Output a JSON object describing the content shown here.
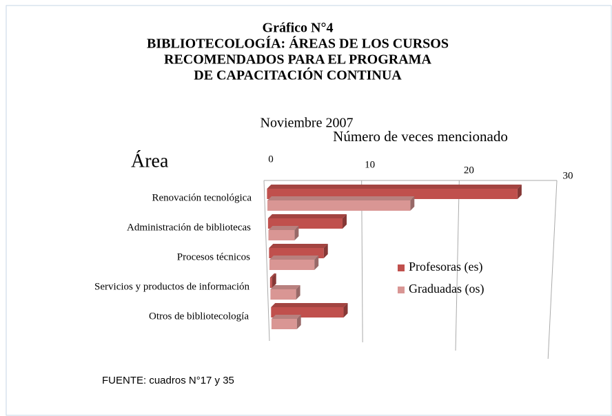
{
  "chart_data": {
    "type": "bar3d",
    "title": [
      "Gráfico N°4",
      "BIBLIOTECOLOGÍA: ÁREAS DE LOS CURSOS",
      "RECOMENDADOS PARA EL PROGRAMA",
      "DE CAPACITACIÓN CONTINUA"
    ],
    "subtitle": "Noviembre 2007",
    "xlabel": "Número de veces mencionado",
    "ylabel": "Área",
    "source": "FUENTE: cuadros N°17 y 35",
    "categories": [
      "Renovación tecnológica",
      "Administración de bibliotecas",
      "Procesos técnicos",
      "Servicios y productos de información",
      "Otros de bibliotecología"
    ],
    "series": [
      {
        "name": "Profesoras (es)",
        "color": "#c0504d",
        "values": [
          26,
          8,
          6,
          0.5,
          8
        ]
      },
      {
        "name": "Graduadas (os)",
        "color": "#d99694",
        "values": [
          15,
          3,
          5,
          3,
          3
        ]
      }
    ],
    "xlim": [
      0,
      30
    ],
    "xticks": [
      0,
      10,
      20,
      30
    ],
    "grid": true,
    "legend": "right"
  }
}
